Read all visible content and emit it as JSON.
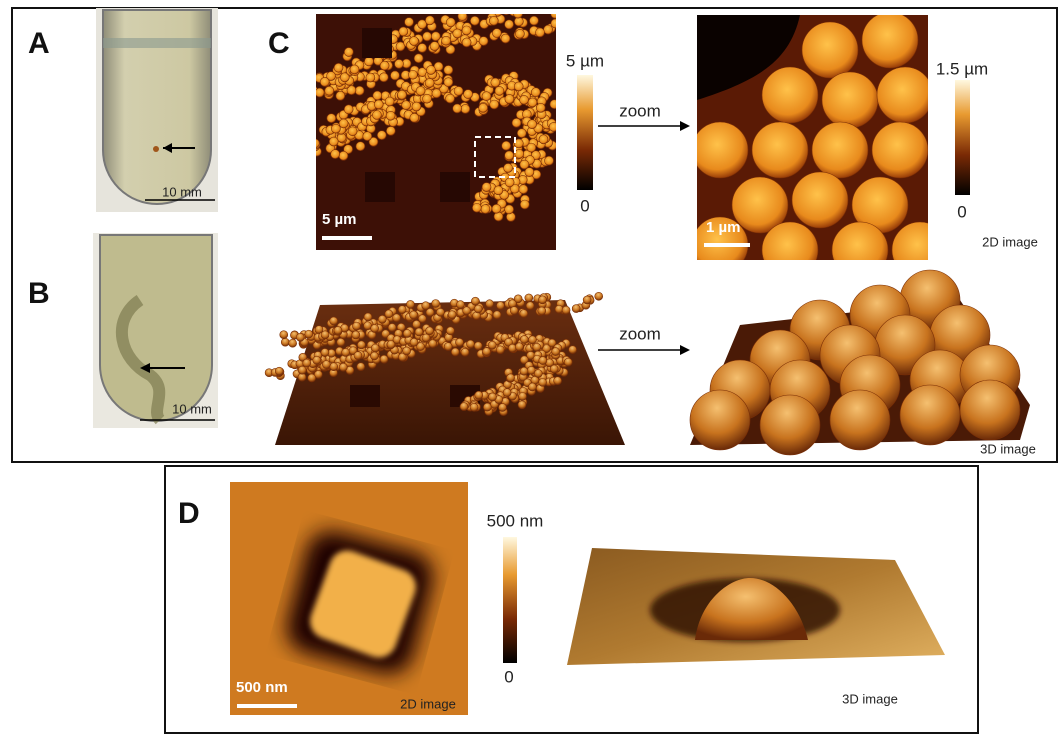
{
  "panel_a": {
    "label": "A",
    "scale_bar": "10 mm"
  },
  "panel_b": {
    "label": "B",
    "scale_bar": "10 mm"
  },
  "panel_c": {
    "label": "C",
    "scale_bar": "5 µm",
    "colorbar_max": "5 µm",
    "colorbar_min": "0",
    "zoom": "zoom",
    "zoom_scale_bar": "1 µm",
    "zoom_colorbar_max": "1.5 µm",
    "zoom_colorbar_min": "0",
    "caption_2d": "2D image",
    "zoom_3d": "zoom",
    "caption_3d": "3D image"
  },
  "panel_d": {
    "label": "D",
    "colorbar_max": "500 nm",
    "colorbar_min": "0",
    "scale_bar": "500 nm",
    "caption_2d": "2D image",
    "caption_3d": "3D image"
  }
}
